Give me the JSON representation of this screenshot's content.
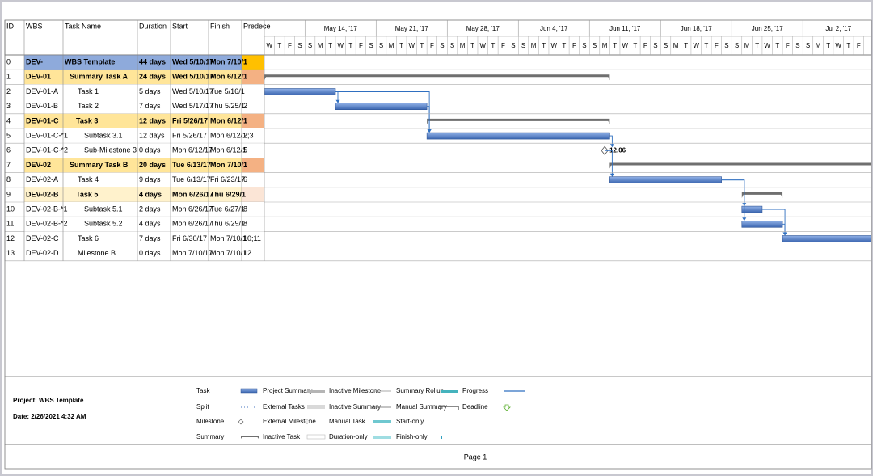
{
  "columns": [
    "ID",
    "WBS",
    "Task Name",
    "Duration",
    "Start",
    "Finish",
    "Predece"
  ],
  "timescale": {
    "weeks": [
      "May 14, '17",
      "May 21, '17",
      "May 28, '17",
      "Jun 4, '17",
      "Jun 11, '17",
      "Jun 18, '17",
      "Jun 25, '17",
      "Jul 2, '17"
    ],
    "day_letters": [
      "S",
      "M",
      "T",
      "W",
      "T",
      "F",
      "S"
    ]
  },
  "rows": [
    {
      "id": "0",
      "wbs": "DEV-",
      "name": "WBS Template",
      "duration": "44 days",
      "start": "Wed 5/10/17",
      "finish": "Mon 7/10/1",
      "kind": "project"
    },
    {
      "id": "1",
      "wbs": "DEV-01",
      "name": "Summary Task A",
      "duration": "24 days",
      "start": "Wed 5/10/17",
      "finish": "Mon 6/12/1",
      "kind": "summary"
    },
    {
      "id": "2",
      "wbs": "DEV-01-A",
      "name": "Task 1",
      "duration": "5 days",
      "start": "Wed 5/10/17",
      "finish": "Tue 5/16/1",
      "kind": "task"
    },
    {
      "id": "3",
      "wbs": "DEV-01-B",
      "name": "Task 2",
      "duration": "7 days",
      "start": "Wed 5/17/17",
      "finish": "Thu 5/25/1",
      "pred": "2",
      "kind": "task"
    },
    {
      "id": "4",
      "wbs": "DEV-01-C",
      "name": "Task 3",
      "duration": "12 days",
      "start": "Fri 5/26/17",
      "finish": "Mon 6/12/1",
      "kind": "summary"
    },
    {
      "id": "5",
      "wbs": "DEV-01-C-*1",
      "name": "Subtask 3.1",
      "duration": "12 days",
      "start": "Fri 5/26/17",
      "finish": "Mon 6/12/1",
      "pred": "2;3",
      "kind": "task"
    },
    {
      "id": "6",
      "wbs": "DEV-01-C-*2",
      "name": "Sub-Milestone 3",
      "duration": "0 days",
      "start": "Mon 6/12/17",
      "finish": "Mon 6/12/1",
      "pred": "5",
      "kind": "milestone",
      "bar_label": "12.06"
    },
    {
      "id": "7",
      "wbs": "DEV-02",
      "name": "Summary Task B",
      "duration": "20 days",
      "start": "Tue 6/13/17",
      "finish": "Mon 7/10/1",
      "kind": "summary"
    },
    {
      "id": "8",
      "wbs": "DEV-02-A",
      "name": "Task 4",
      "duration": "9 days",
      "start": "Tue 6/13/17",
      "finish": "Fri 6/23/17",
      "pred": "6",
      "kind": "task"
    },
    {
      "id": "9",
      "wbs": "DEV-02-B",
      "name": "Task 5",
      "duration": "4 days",
      "start": "Mon 6/26/17",
      "finish": "Thu 6/29/1",
      "kind": "summary-light"
    },
    {
      "id": "10",
      "wbs": "DEV-02-B-*1",
      "name": "Subtask 5.1",
      "duration": "2 days",
      "start": "Mon 6/26/17",
      "finish": "Tue 6/27/1",
      "pred": "8",
      "kind": "task"
    },
    {
      "id": "11",
      "wbs": "DEV-02-B-*2",
      "name": "Subtask 5.2",
      "duration": "4 days",
      "start": "Mon 6/26/17",
      "finish": "Thu 6/29/1",
      "pred": "8",
      "kind": "task"
    },
    {
      "id": "12",
      "wbs": "DEV-02-C",
      "name": "Task 6",
      "duration": "7 days",
      "start": "Fri 6/30/17",
      "finish": "Mon 7/10/1",
      "pred": "10;11",
      "kind": "task"
    },
    {
      "id": "13",
      "wbs": "DEV-02-D",
      "name": "Milestone B",
      "duration": "0 days",
      "start": "Mon 7/10/17",
      "finish": "Mon 7/10/1",
      "pred": "12",
      "kind": "milestone"
    }
  ],
  "footer": {
    "project": "Project: WBS Template",
    "date": "Date: 2/26/2021 4:32 AM",
    "legend": [
      [
        "Task",
        "Split",
        "Milestone",
        "Summary"
      ],
      [
        "Project Summary",
        "External Tasks",
        "External Milestone",
        "Inactive Task"
      ],
      [
        "Inactive Milestone",
        "Inactive Summary",
        "Manual Task",
        "Duration-only"
      ],
      [
        "Summary Rollup",
        "Manual Summary",
        "Start-only",
        "Finish-only"
      ],
      [
        "Progress",
        "Deadline"
      ]
    ],
    "page": "Page 1"
  }
}
